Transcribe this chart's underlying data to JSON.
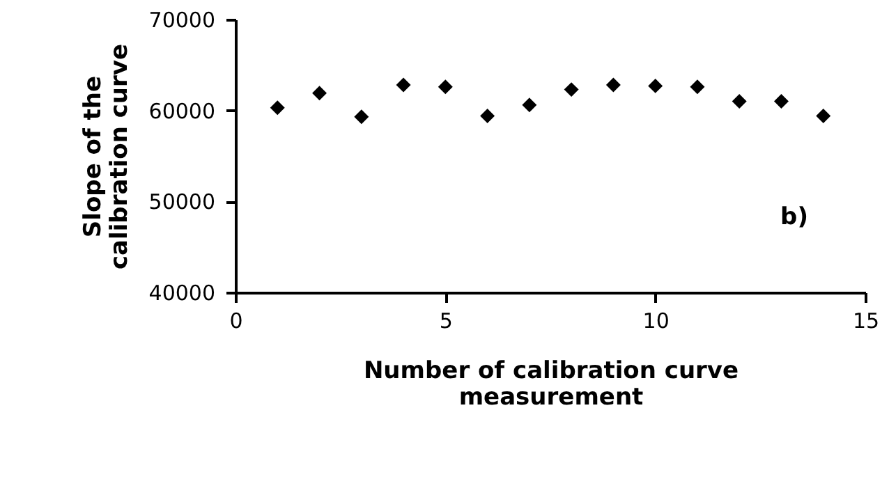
{
  "chart_data": {
    "type": "scatter",
    "xlabel": "Number of calibration curve measurement",
    "ylabel": "Slope of the calibration curve",
    "x": [
      1,
      2,
      3,
      4,
      5,
      6,
      7,
      8,
      9,
      10,
      11,
      12,
      13,
      14
    ],
    "series": [
      {
        "color": "#000000",
        "values": [
          60300,
          61900,
          59300,
          62800,
          62600,
          59400,
          60600,
          62300,
          62800,
          62700,
          62600,
          61000,
          61000,
          59400
        ]
      }
    ],
    "xlim": [
      0,
      15
    ],
    "xticks": [
      0,
      5,
      10,
      15
    ],
    "ylim": [
      40000,
      70000
    ],
    "yticks": [
      40000,
      50000,
      60000,
      70000
    ],
    "marker": "diamond",
    "grid": false,
    "legend": false,
    "annotations": [
      "b)"
    ]
  }
}
